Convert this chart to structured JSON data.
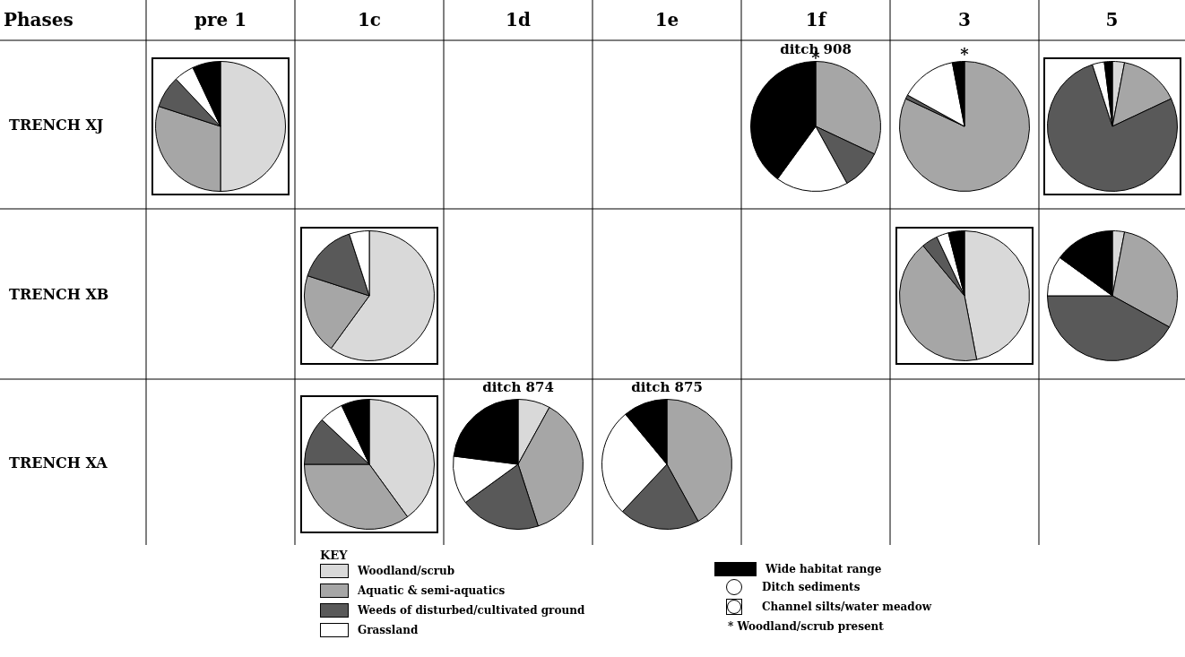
{
  "chart_data": [
    {
      "type": "other",
      "title": "Phases",
      "categories": [
        "pre 1",
        "1c",
        "1d",
        "1e",
        "1f",
        "3",
        "5"
      ],
      "y_categories": [
        "TRENCH XJ",
        "TRENCH XB",
        "TRENCH XA"
      ],
      "annotations": [
        "KEY",
        "Ditch sediments",
        "Channel silts/water meadow",
        "* Woodland/scrub present"
      ]
    },
    {
      "type": "pie",
      "categories": [
        "Woodland/scrub",
        "Aquatic & semi-aquatics",
        "Weeds of disturbed/cultivated ground",
        "Grassland",
        "Wide habitat range"
      ],
      "colors": [
        "#d9d9d9",
        "#a6a6a6",
        "#595959",
        "#ffffff",
        "#000000"
      ],
      "values": [
        50,
        30,
        8,
        5,
        7
      ],
      "legend": "bottom"
    },
    {
      "type": "pie",
      "title": "ditch 908",
      "annotations": [
        "*"
      ],
      "colors": [
        "#d9d9d9",
        "#a6a6a6",
        "#595959",
        "#ffffff",
        "#000000"
      ],
      "values": [
        0,
        32,
        10,
        18,
        40
      ]
    },
    {
      "type": "pie",
      "annotations": [
        "*"
      ],
      "colors": [
        "#d9d9d9",
        "#a6a6a6",
        "#595959",
        "#ffffff",
        "#000000"
      ],
      "values": [
        0,
        82,
        1,
        14,
        3
      ]
    },
    {
      "type": "pie",
      "colors": [
        "#d9d9d9",
        "#a6a6a6",
        "#595959",
        "#ffffff",
        "#000000"
      ],
      "values": [
        3,
        15,
        77,
        3,
        2
      ]
    },
    {
      "type": "pie",
      "colors": [
        "#d9d9d9",
        "#a6a6a6",
        "#595959",
        "#ffffff",
        "#000000"
      ],
      "values": [
        60,
        20,
        15,
        5,
        0
      ]
    },
    {
      "type": "pie",
      "colors": [
        "#d9d9d9",
        "#a6a6a6",
        "#595959",
        "#ffffff",
        "#000000"
      ],
      "values": [
        47,
        42,
        4,
        3,
        4
      ]
    },
    {
      "type": "pie",
      "colors": [
        "#d9d9d9",
        "#a6a6a6",
        "#595959",
        "#ffffff",
        "#000000"
      ],
      "values": [
        3,
        30,
        42,
        10,
        15
      ]
    },
    {
      "type": "pie",
      "colors": [
        "#d9d9d9",
        "#a6a6a6",
        "#595959",
        "#ffffff",
        "#000000"
      ],
      "values": [
        40,
        35,
        12,
        6,
        7
      ]
    },
    {
      "type": "pie",
      "title": "ditch 874",
      "colors": [
        "#d9d9d9",
        "#a6a6a6",
        "#595959",
        "#ffffff",
        "#000000"
      ],
      "values": [
        8,
        37,
        20,
        12,
        23
      ]
    },
    {
      "type": "pie",
      "title": "ditch 875",
      "colors": [
        "#d9d9d9",
        "#a6a6a6",
        "#595959",
        "#ffffff",
        "#000000"
      ],
      "values": [
        0,
        42,
        20,
        27,
        11
      ]
    }
  ]
}
